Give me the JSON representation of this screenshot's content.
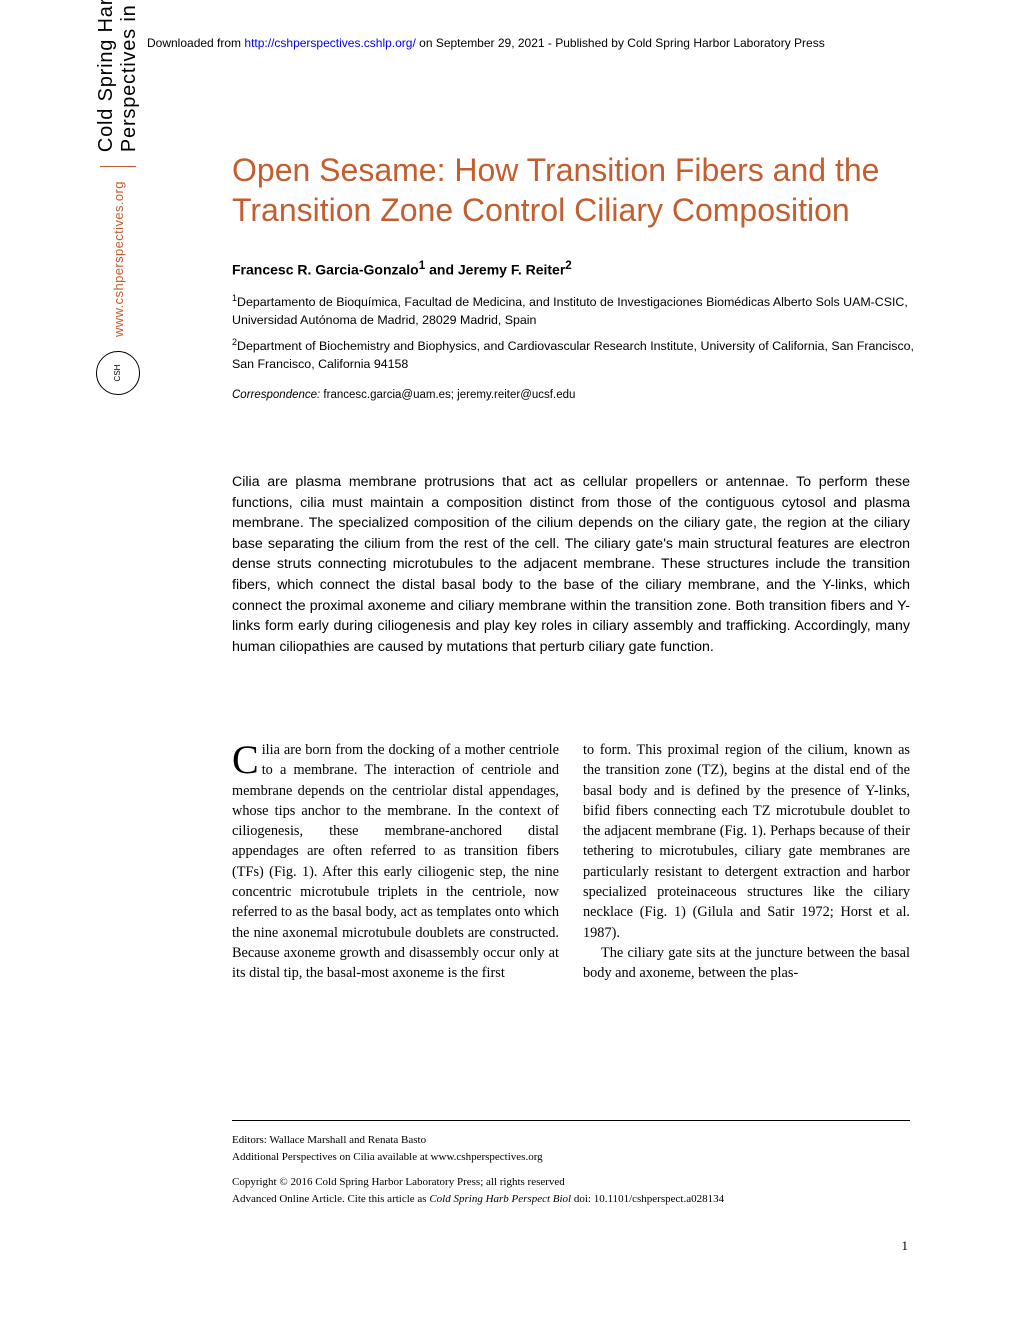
{
  "header": {
    "prefix": "Downloaded from ",
    "url": "http://cshperspectives.cshlp.org/",
    "suffix": " on September 29, 2021 - Published by Cold Spring Harbor Laboratory Press"
  },
  "title": "Open Sesame: How Transition Fibers and the Transition Zone Control Ciliary Composition",
  "authors_html": "Francesc R. Garcia-Gonzalo<sup>1</sup> and Jeremy F. Reiter<sup>2</sup>",
  "affiliations": [
    "<sup>1</sup>Departamento de Bioquímica, Facultad de Medicina, and Instituto de Investigaciones Biomédicas Alberto Sols UAM-CSIC, Universidad Autónoma de Madrid, 28029 Madrid, Spain",
    "<sup>2</sup>Department of Biochemistry and Biophysics, and Cardiovascular Research Institute, University of California, San Francisco, San Francisco, California 94158"
  ],
  "correspondence": {
    "label": "Correspondence:",
    "emails": " francesc.garcia@uam.es; jeremy.reiter@ucsf.edu"
  },
  "abstract": "Cilia are plasma membrane protrusions that act as cellular propellers or antennae. To perform these functions, cilia must maintain a composition distinct from those of the contiguous cytosol and plasma membrane. The specialized composition of the cilium depends on the ciliary gate, the region at the ciliary base separating the cilium from the rest of the cell. The ciliary gate's main structural features are electron dense struts connecting microtubules to the adjacent membrane. These structures include the transition fibers, which connect the distal basal body to the base of the ciliary membrane, and the Y-links, which connect the proximal axoneme and ciliary membrane within the transition zone. Both transition fibers and Y-links form early during ciliogenesis and play key roles in ciliary assembly and trafficking. Accordingly, many human ciliopathies are caused by mutations that perturb ciliary gate function.",
  "body": {
    "col1_dropcap": "C",
    "col1": "ilia are born from the docking of a mother centriole to a membrane. The interaction of centriole and membrane depends on the centriolar distal appendages, whose tips anchor to the membrane. In the context of ciliogenesis, these membrane-anchored distal appendages are often referred to as transition fibers (TFs) (Fig. 1). After this early ciliogenic step, the nine concentric microtubule triplets in the centriole, now referred to as the basal body, act as templates onto which the nine axonemal microtubule doublets are constructed. Because axoneme growth and disassembly occur only at its distal tip, the basal-most axoneme is the first",
    "col2_p1": "to form. This proximal region of the cilium, known as the transition zone (TZ), begins at the distal end of the basal body and is defined by the presence of Y-links, bifid fibers connecting each TZ microtubule doublet to the adjacent membrane (Fig. 1). Perhaps because of their tethering to microtubules, ciliary gate membranes are particularly resistant to detergent extraction and harbor specialized proteinaceous structures like the ciliary necklace (Fig. 1) (Gilula and Satir 1972; Horst et al. 1987).",
    "col2_p2": "The ciliary gate sits at the juncture between the basal body and axoneme, between the plas-"
  },
  "footer": {
    "editors": "Editors: Wallace Marshall and Renata Basto",
    "additional": "Additional Perspectives on Cilia available at www.cshperspectives.org",
    "copyright": "Copyright © 2016 Cold Spring Harbor Laboratory Press; all rights reserved",
    "cite_prefix": "Advanced Online Article. Cite this article as ",
    "cite_italic": "Cold Spring Harb Perspect Biol",
    "cite_suffix": " doi: 10.1101/cshperspect.a028134"
  },
  "page_number": "1",
  "sidebar": {
    "logo_text": "CSH",
    "url": "www.cshperspectives.org",
    "title": "Cold Spring Harbor Perspectives in Biology"
  },
  "colors": {
    "accent": "#c25e2f",
    "link": "#0000ee",
    "text": "#000000",
    "background": "#ffffff"
  }
}
